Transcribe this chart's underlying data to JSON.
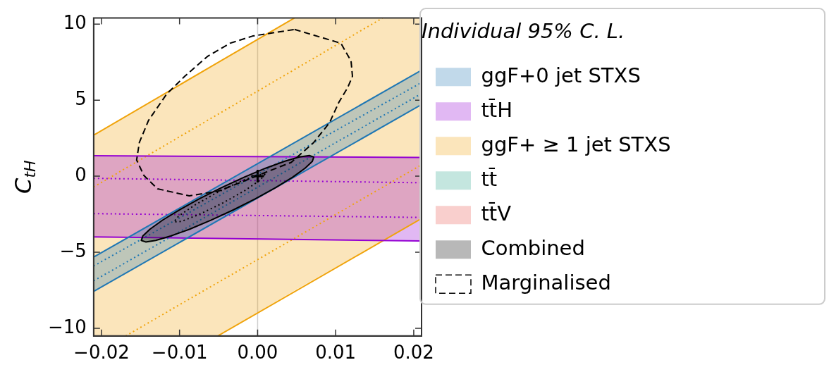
{
  "chart_data": {
    "type": "line",
    "ylabel": "C$_{tH}$",
    "legend_title": "Individual 95% C. L.",
    "legend": "right",
    "grid": false,
    "xlim": [
      -0.021,
      0.021
    ],
    "ylim": [
      -10.5,
      10.4
    ],
    "xticks": [
      {
        "value": -0.02,
        "label": "−0.02"
      },
      {
        "value": -0.01,
        "label": "−0.01"
      },
      {
        "value": 0,
        "label": "0.00"
      },
      {
        "value": 0.01,
        "label": "0.01"
      },
      {
        "value": 0.02,
        "label": "0.02"
      }
    ],
    "yticks": [
      {
        "value": -10,
        "label": "−10"
      },
      {
        "value": -5,
        "label": "−5"
      },
      0,
      5,
      10
    ],
    "ref_lines": [
      {
        "axis": "x",
        "value": 0,
        "color": "#cfcfcf"
      }
    ],
    "series": [
      {
        "name": "ggF+0 jet STXS",
        "color": "#1f77b4",
        "x": [
          -0.021,
          0.021
        ],
        "values": [
          -5.32,
          6.97
        ],
        "lower": [
          -7.57,
          4.71
        ],
        "upper": [
          -5.32,
          6.97
        ]
      },
      {
        "color": "#1f77b4",
        "x": [
          -0.021,
          0.021
        ],
        "values": [
          -7.57,
          4.71
        ]
      },
      {
        "color": "#1f77b4",
        "line_style": "dotted",
        "x": [
          -0.021,
          0.021
        ],
        "values": [
          -5.9,
          6.16
        ]
      },
      {
        "color": "#1f77b4",
        "line_style": "dotted",
        "x": [
          -0.021,
          0.021
        ],
        "values": [
          -6.88,
          5.43
        ]
      },
      {
        "name": "tt̄H",
        "color": "#9400d3",
        "x": [
          -0.021,
          0.021
        ],
        "values": [
          1.35,
          1.23
        ],
        "lower": [
          -3.99,
          -4.26
        ],
        "upper": [
          1.35,
          1.23
        ]
      },
      {
        "color": "#9400d3",
        "x": [
          -0.021,
          0.021
        ],
        "values": [
          -3.99,
          -4.26
        ]
      },
      {
        "color": "#9400d3",
        "line_style": "dotted",
        "x": [
          -0.021,
          0.021
        ],
        "values": [
          -0.14,
          -0.43
        ]
      },
      {
        "color": "#9400d3",
        "line_style": "dotted",
        "x": [
          -0.021,
          0.021
        ],
        "values": [
          -2.46,
          -2.71
        ]
      },
      {
        "name": "ggF+ ≥ 1 jet STXS",
        "color": "#f0a30a",
        "x": [
          -0.021,
          -0.0051,
          0.0047,
          0.021
        ],
        "values": [
          2.7,
          7.47,
          10.4,
          null
        ],
        "lower": [
          -10.5,
          -10.5,
          -7.52,
          -2.78
        ],
        "upper": [
          2.7,
          7.47,
          10.4,
          10.4
        ]
      },
      {
        "color": "#f0a30a",
        "x": [
          -0.0051,
          0.021
        ],
        "values": [
          -10.5,
          -2.78
        ]
      },
      {
        "color": "#f0a30a",
        "line_style": "dotted",
        "x": [
          -0.021,
          0.016
        ],
        "values": [
          -0.71,
          10.4
        ]
      },
      {
        "color": "#f0a30a",
        "line_style": "dotted",
        "x": [
          -0.0169,
          0.021
        ],
        "values": [
          -10.5,
          0.75
        ]
      },
      {
        "name": "tt̄",
        "type": "area",
        "color": "#2ca58d"
      },
      {
        "name": "tt̄V",
        "type": "area",
        "color": "#e8534a"
      },
      {
        "name": "Combined",
        "type": "area",
        "color": "#000000"
      },
      {
        "name": "Marginalised",
        "color": "#000000",
        "line_style": "dashed"
      },
      {
        "type": "scatter",
        "color": "#000000",
        "marker": "cross",
        "x": [
          0
        ],
        "values": [
          0
        ]
      }
    ]
  }
}
